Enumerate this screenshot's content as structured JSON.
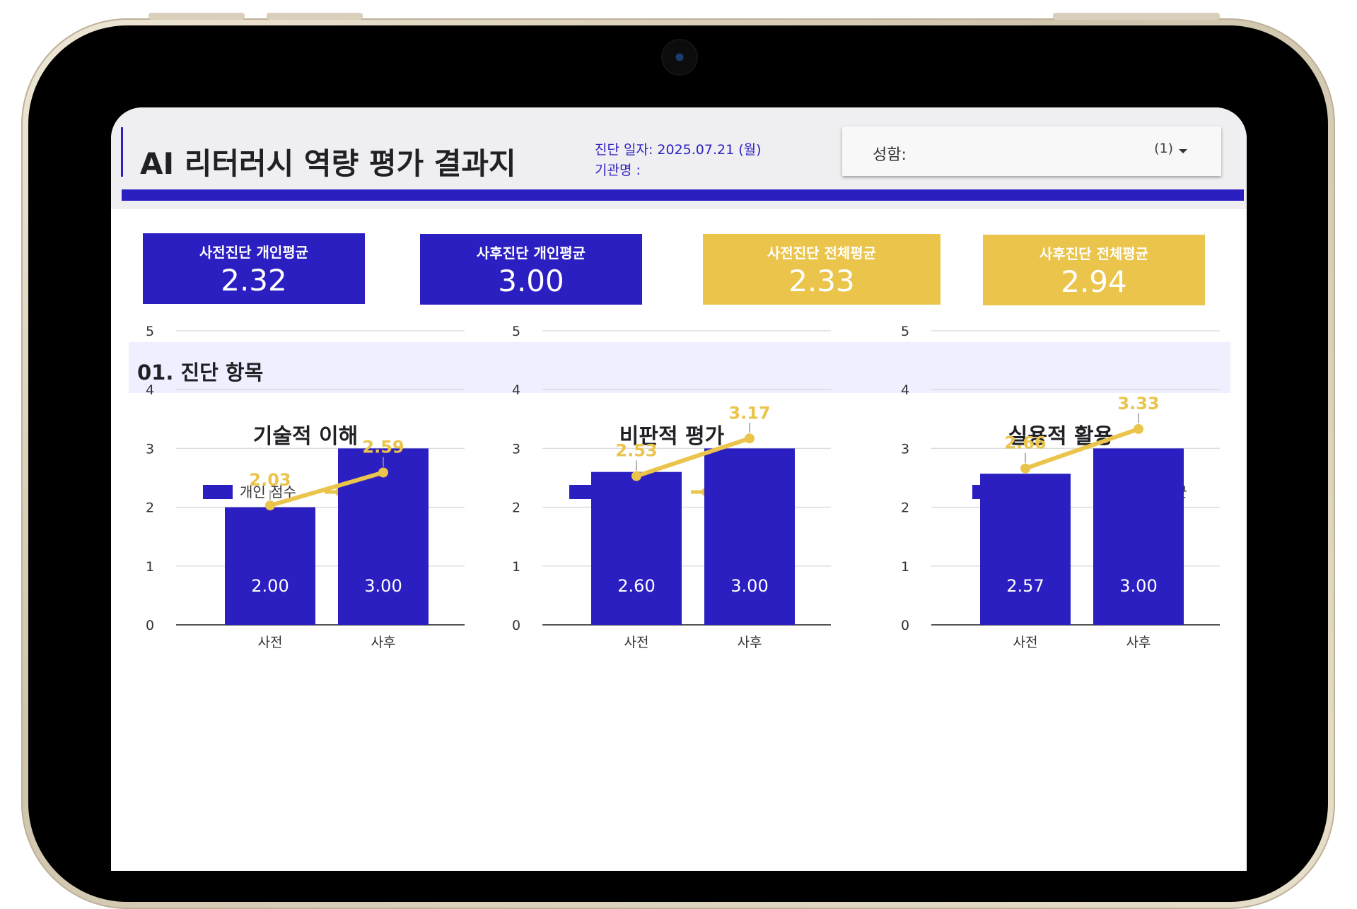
{
  "header": {
    "title": "AI 리터러시 역량 평가 결과지",
    "date_line": "진단 일자: 2025.07.21 (월)",
    "org_line": "기관명 :",
    "name_label": "성함:",
    "name_value": "(1)"
  },
  "cards": [
    {
      "label": "사전진단 개인평균",
      "value": "2.32",
      "color": "#2b1fc1"
    },
    {
      "label": "사후진단 개인평균",
      "value": "3.00",
      "color": "#2b1fc1"
    },
    {
      "label": "사전진단 전체평균",
      "value": "2.33",
      "color": "#eac44b"
    },
    {
      "label": "사후진단 전체평균",
      "value": "2.94",
      "color": "#eac44b"
    }
  ],
  "section": {
    "title": "01. 진단 항목"
  },
  "colors": {
    "bar": "#2b1fc1",
    "line": "#eac44b",
    "accent": "#2b1fc1"
  },
  "chart_data": [
    {
      "type": "bar",
      "title": "기술적 이해",
      "categories": [
        "사전",
        "사후"
      ],
      "series": [
        {
          "name": "개인 점수",
          "type": "bar",
          "values": [
            2.0,
            3.0
          ],
          "labels": [
            "2.00",
            "3.00"
          ]
        },
        {
          "name": "전체 평균",
          "type": "line",
          "values": [
            2.03,
            2.59
          ],
          "labels": [
            "2.03",
            "2.59"
          ]
        }
      ],
      "ylim": [
        0,
        5
      ],
      "yticks": [
        "0",
        "1",
        "2",
        "3",
        "4",
        "5"
      ],
      "legend": "top",
      "grid": true
    },
    {
      "type": "bar",
      "title": "비판적 평가",
      "categories": [
        "사전",
        "사후"
      ],
      "series": [
        {
          "name": "개인 점수",
          "type": "bar",
          "values": [
            2.6,
            3.0
          ],
          "labels": [
            "2.60",
            "3.00"
          ]
        },
        {
          "name": "전체 평균",
          "type": "line",
          "values": [
            2.53,
            3.17
          ],
          "labels": [
            "2.53",
            "3.17"
          ]
        }
      ],
      "ylim": [
        0,
        5
      ],
      "yticks": [
        "0",
        "1",
        "2",
        "3",
        "4",
        "5"
      ],
      "legend": "top",
      "grid": true
    },
    {
      "type": "bar",
      "title": "실용적 활용",
      "categories": [
        "사전",
        "사후"
      ],
      "series": [
        {
          "name": "개인 점수",
          "type": "bar",
          "values": [
            2.57,
            3.0
          ],
          "labels": [
            "2.57",
            "3.00"
          ]
        },
        {
          "name": "전체 평균",
          "type": "line",
          "values": [
            2.66,
            3.33
          ],
          "labels": [
            "2.66",
            "3.33"
          ]
        }
      ],
      "ylim": [
        0,
        5
      ],
      "yticks": [
        "0",
        "1",
        "2",
        "3",
        "4",
        "5"
      ],
      "legend": "top",
      "grid": true
    }
  ]
}
